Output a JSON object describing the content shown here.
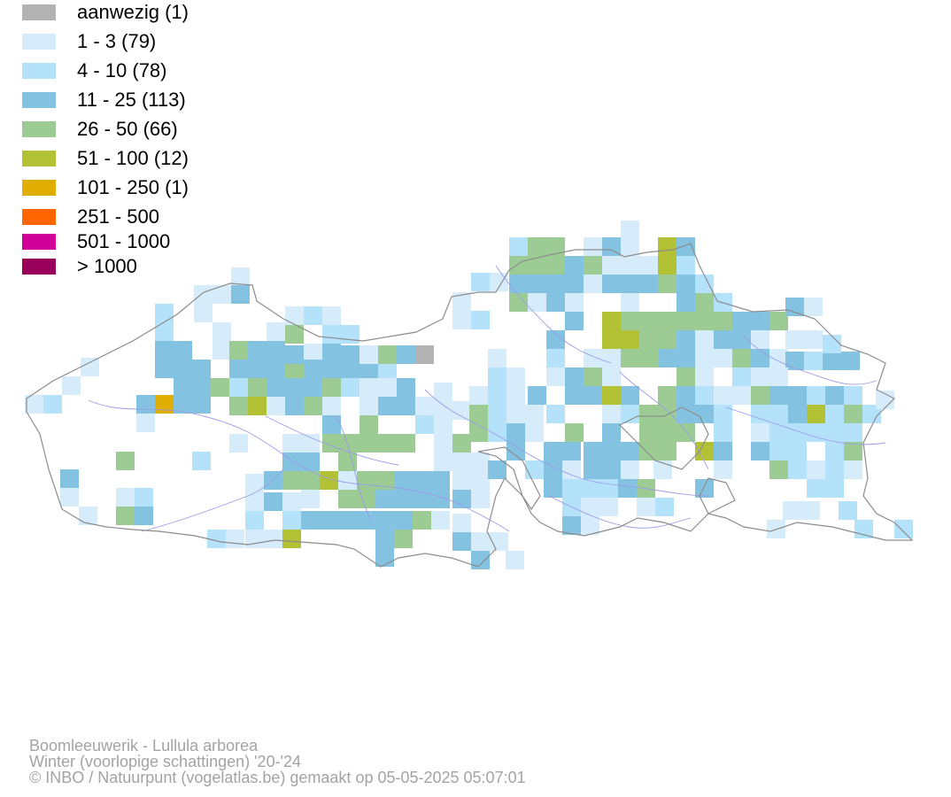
{
  "legend": [
    {
      "label": "aanwezig (1)",
      "color": "#b2b2b2"
    },
    {
      "label": "1 - 3 (79)",
      "color": "#d6ecfa"
    },
    {
      "label": "4 - 10 (78)",
      "color": "#b4e2fb"
    },
    {
      "label": "11 - 25 (113)",
      "color": "#84c2e2"
    },
    {
      "label": "26 - 50 (66)",
      "color": "#9ccc94"
    },
    {
      "label": "51 - 100 (12)",
      "color": "#b3c234"
    },
    {
      "label": "101 - 250 (1)",
      "color": "#e0ad03"
    },
    {
      "label": "251 - 500",
      "color": "#ff6600"
    },
    {
      "label": "501 - 1000",
      "color": "#d10098"
    },
    {
      "label": "> 1000",
      "color": "#99005c"
    }
  ],
  "credits": {
    "species": "Boomleeuwerik - Lullula arborea",
    "season": "Winter (voorlopige schattingen) '20-'24",
    "copyright": "© INBO / Natuurpunt (vogelatlas.be) gemaakt op 05-05-2025 05:07:01"
  },
  "colors": {
    "border": "#8c8c8c",
    "river": "#9b9be6",
    "credits_text": "#a3a3a3"
  }
}
